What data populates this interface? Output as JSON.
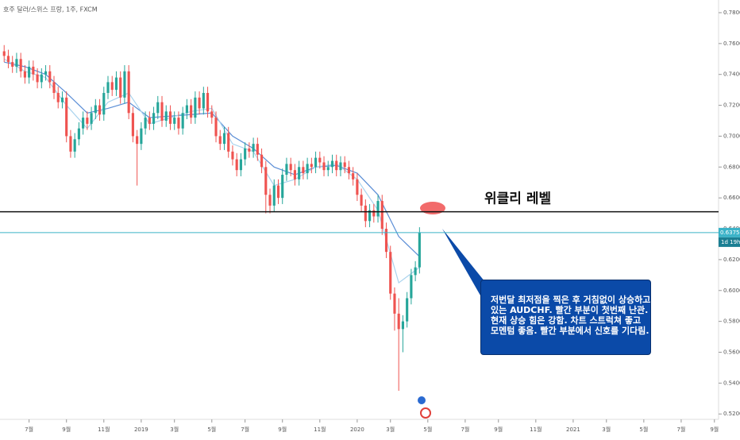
{
  "chart_data": {
    "type": "candlestick",
    "title": "호주 달러/스위스 프랑, 1주, FXCM",
    "up_color": "#26a69a",
    "down_color": "#ef5350",
    "xlim": [
      -1,
      172
    ],
    "xticks": [
      {
        "value": 6,
        "label": "7월"
      },
      {
        "value": 15,
        "label": "9월"
      },
      {
        "value": 24,
        "label": "11월"
      },
      {
        "value": 33,
        "label": "2019"
      },
      {
        "value": 41,
        "label": "3월"
      },
      {
        "value": 50,
        "label": "5월"
      },
      {
        "value": 58,
        "label": "7월"
      },
      {
        "value": 67,
        "label": "9월"
      },
      {
        "value": 76,
        "label": "11월"
      },
      {
        "value": 85,
        "label": "2020"
      },
      {
        "value": 93,
        "label": "3월"
      },
      {
        "value": 102,
        "label": "5월"
      },
      {
        "value": 111,
        "label": "7월"
      },
      {
        "value": 119,
        "label": "9월"
      },
      {
        "value": 128,
        "label": "11월"
      },
      {
        "value": 137,
        "label": "2021"
      },
      {
        "value": 145,
        "label": "3월"
      },
      {
        "value": 154,
        "label": "5월"
      },
      {
        "value": 163,
        "label": "7월"
      },
      {
        "value": 171,
        "label": "9월"
      }
    ],
    "ylim": [
      0.5124,
      0.7841
    ],
    "yticks": [
      {
        "value": 0.52,
        "label": "0.52000"
      },
      {
        "value": 0.54,
        "label": "0.54000"
      },
      {
        "value": 0.56,
        "label": "0.56000"
      },
      {
        "value": 0.58,
        "label": "0.58000"
      },
      {
        "value": 0.6,
        "label": "0.60000"
      },
      {
        "value": 0.62,
        "label": "0.62000"
      },
      {
        "value": 0.64,
        "label": "0.64000"
      },
      {
        "value": 0.66,
        "label": "0.66000"
      },
      {
        "value": 0.68,
        "label": "0.68000"
      },
      {
        "value": 0.7,
        "label": "0.70000"
      },
      {
        "value": 0.72,
        "label": "0.72000"
      },
      {
        "value": 0.74,
        "label": "0.74000"
      },
      {
        "value": 0.76,
        "label": "0.76000"
      },
      {
        "value": 0.78,
        "label": "0.78000"
      }
    ],
    "open": [
      0.755,
      0.752,
      0.748,
      0.745,
      0.75,
      0.742,
      0.738,
      0.745,
      0.74,
      0.735,
      0.74,
      0.742,
      0.735,
      0.728,
      0.722,
      0.725,
      0.7,
      0.69,
      0.698,
      0.705,
      0.712,
      0.708,
      0.715,
      0.72,
      0.714,
      0.728,
      0.735,
      0.73,
      0.738,
      0.725,
      0.742,
      0.715,
      0.7,
      0.695,
      0.705,
      0.712,
      0.708,
      0.715,
      0.722,
      0.71,
      0.716,
      0.708,
      0.712,
      0.705,
      0.715,
      0.72,
      0.712,
      0.725,
      0.718,
      0.728,
      0.716,
      0.712,
      0.7,
      0.695,
      0.702,
      0.69,
      0.685,
      0.678,
      0.685,
      0.692,
      0.69,
      0.695,
      0.688,
      0.68,
      0.662,
      0.655,
      0.668,
      0.66,
      0.675,
      0.682,
      0.678,
      0.672,
      0.68,
      0.676,
      0.682,
      0.68,
      0.686,
      0.683,
      0.678,
      0.68,
      0.684,
      0.678,
      0.683,
      0.68,
      0.676,
      0.672,
      0.662,
      0.655,
      0.645,
      0.652,
      0.648,
      0.658,
      0.64,
      0.625,
      0.598,
      0.585,
      0.575,
      0.58,
      0.595,
      0.61,
      0.615
    ],
    "high": [
      0.759,
      0.756,
      0.752,
      0.754,
      0.754,
      0.746,
      0.749,
      0.749,
      0.744,
      0.744,
      0.746,
      0.746,
      0.739,
      0.732,
      0.729,
      0.729,
      0.704,
      0.702,
      0.709,
      0.716,
      0.716,
      0.719,
      0.724,
      0.724,
      0.732,
      0.739,
      0.739,
      0.742,
      0.742,
      0.746,
      0.746,
      0.719,
      0.704,
      0.709,
      0.716,
      0.716,
      0.719,
      0.726,
      0.726,
      0.72,
      0.72,
      0.716,
      0.716,
      0.719,
      0.724,
      0.724,
      0.729,
      0.729,
      0.732,
      0.732,
      0.72,
      0.716,
      0.704,
      0.706,
      0.706,
      0.694,
      0.689,
      0.689,
      0.696,
      0.696,
      0.699,
      0.699,
      0.692,
      0.684,
      0.666,
      0.672,
      0.672,
      0.679,
      0.686,
      0.686,
      0.682,
      0.684,
      0.684,
      0.686,
      0.686,
      0.69,
      0.69,
      0.687,
      0.684,
      0.688,
      0.688,
      0.687,
      0.687,
      0.684,
      0.68,
      0.676,
      0.666,
      0.659,
      0.656,
      0.656,
      0.662,
      0.662,
      0.644,
      0.629,
      0.602,
      0.595,
      0.584,
      0.599,
      0.614,
      0.619,
      0.641
    ],
    "low": [
      0.748,
      0.744,
      0.741,
      0.741,
      0.738,
      0.734,
      0.734,
      0.736,
      0.731,
      0.731,
      0.736,
      0.731,
      0.724,
      0.718,
      0.718,
      0.696,
      0.686,
      0.686,
      0.694,
      0.701,
      0.704,
      0.704,
      0.711,
      0.71,
      0.71,
      0.724,
      0.726,
      0.726,
      0.721,
      0.721,
      0.711,
      0.696,
      0.668,
      0.691,
      0.701,
      0.704,
      0.704,
      0.711,
      0.706,
      0.706,
      0.704,
      0.704,
      0.701,
      0.701,
      0.711,
      0.708,
      0.708,
      0.714,
      0.714,
      0.712,
      0.708,
      0.696,
      0.691,
      0.691,
      0.686,
      0.681,
      0.674,
      0.674,
      0.681,
      0.686,
      0.686,
      0.684,
      0.676,
      0.65,
      0.65,
      0.651,
      0.656,
      0.656,
      0.671,
      0.674,
      0.668,
      0.668,
      0.672,
      0.672,
      0.676,
      0.676,
      0.679,
      0.674,
      0.674,
      0.676,
      0.674,
      0.674,
      0.676,
      0.672,
      0.668,
      0.658,
      0.651,
      0.641,
      0.641,
      0.644,
      0.644,
      0.636,
      0.621,
      0.594,
      0.574,
      0.535,
      0.56,
      0.576,
      0.591,
      0.606,
      0.611
    ],
    "close": [
      0.752,
      0.748,
      0.745,
      0.75,
      0.742,
      0.738,
      0.745,
      0.74,
      0.735,
      0.74,
      0.742,
      0.735,
      0.728,
      0.722,
      0.725,
      0.7,
      0.69,
      0.698,
      0.705,
      0.712,
      0.708,
      0.715,
      0.72,
      0.714,
      0.728,
      0.735,
      0.73,
      0.738,
      0.725,
      0.742,
      0.715,
      0.7,
      0.695,
      0.705,
      0.712,
      0.708,
      0.715,
      0.722,
      0.71,
      0.716,
      0.708,
      0.712,
      0.705,
      0.715,
      0.72,
      0.712,
      0.725,
      0.718,
      0.728,
      0.716,
      0.712,
      0.7,
      0.695,
      0.702,
      0.69,
      0.685,
      0.678,
      0.685,
      0.692,
      0.69,
      0.695,
      0.688,
      0.68,
      0.662,
      0.655,
      0.668,
      0.66,
      0.675,
      0.682,
      0.678,
      0.672,
      0.68,
      0.676,
      0.682,
      0.68,
      0.686,
      0.683,
      0.678,
      0.68,
      0.684,
      0.678,
      0.683,
      0.68,
      0.676,
      0.672,
      0.662,
      0.655,
      0.645,
      0.652,
      0.648,
      0.658,
      0.64,
      0.625,
      0.598,
      0.585,
      0.575,
      0.58,
      0.595,
      0.61,
      0.615,
      0.6375
    ],
    "lines": [
      {
        "color": "#5b8ed6",
        "x": [
          0,
          5,
          10,
          15,
          20,
          25,
          30,
          35,
          40,
          45,
          50,
          55,
          60,
          65,
          70,
          75,
          80,
          85,
          90,
          95,
          100
        ],
        "values": [
          0.748,
          0.745,
          0.74,
          0.728,
          0.715,
          0.718,
          0.722,
          0.712,
          0.713,
          0.714,
          0.715,
          0.7,
          0.692,
          0.68,
          0.675,
          0.68,
          0.681,
          0.676,
          0.662,
          0.635,
          0.622
        ]
      },
      {
        "color": "#a9d3ee",
        "x": [
          0,
          5,
          10,
          15,
          20,
          25,
          30,
          35,
          40,
          45,
          50,
          55,
          60,
          65,
          70,
          75,
          80,
          85,
          90,
          95,
          100
        ],
        "values": [
          0.75,
          0.742,
          0.738,
          0.72,
          0.705,
          0.722,
          0.728,
          0.708,
          0.712,
          0.716,
          0.718,
          0.695,
          0.69,
          0.668,
          0.672,
          0.68,
          0.682,
          0.672,
          0.652,
          0.605,
          0.615
        ]
      }
    ],
    "level": {
      "value": 0.651,
      "label": "위클리 레벨"
    },
    "last_price": {
      "value": 0.6375,
      "label": "0.63750",
      "color": "#3bb3c8"
    },
    "countdown": "1d 19h",
    "annotation": [
      "저번달 최저점을 찍은 후 거침없이 상승하고",
      "있는 AUDCHF. 빨간 부분이 첫번째 난관.",
      "현재 상승 힘은 강함. 차트 스트럭쳐 좋고",
      "모멘텀 좋음. 빨간 부분에서 신호를 기다림."
    ]
  }
}
